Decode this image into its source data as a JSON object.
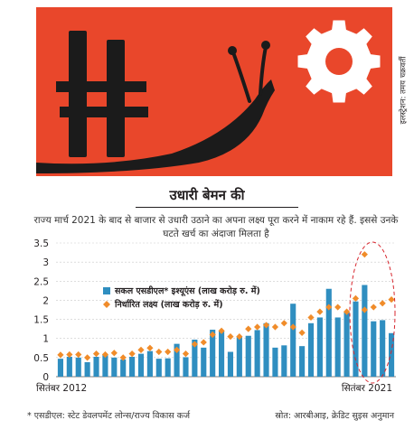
{
  "credit": "इलस्ट्रेशन: तमय चक्रवर्ती",
  "colors": {
    "background": "#e9472b",
    "bars": "#2f8ec0",
    "target_markers": "#f08c2a",
    "highlight_ellipse": "#d7262e",
    "icon_dark": "#1b1b1b",
    "icon_light": "#ffffff"
  },
  "icons": [
    "rupee-symbol-icon",
    "snail-icon",
    "gear-icon"
  ],
  "chart_data": {
    "type": "bar",
    "title": "उधारी बेमन की",
    "subtitle": "राज्य मार्च 2021 के बाद से बाजार से उधारी उठाने का अपना लक्ष्य पूरा करने में नाकाम रहे हैं. इससे उनके घटते खर्च का अंदाजा मिलता है",
    "ylim": [
      0,
      3.5
    ],
    "yticks": [
      "0",
      "0.5",
      "1",
      "1.5",
      "2",
      "2.5",
      "3",
      "3.5"
    ],
    "grid": true,
    "legend": "top-left",
    "xtick_labels": [
      "सितंबर 2012",
      "सितंबर 2021"
    ],
    "series": [
      {
        "name": "सकल एसडीएल* इश्यूएंस (लाख करोड़ रु. में)",
        "type": "bar",
        "values": [
          0.47,
          0.52,
          0.5,
          0.38,
          0.52,
          0.57,
          0.5,
          0.45,
          0.52,
          0.6,
          0.67,
          0.47,
          0.48,
          0.86,
          0.51,
          0.97,
          0.76,
          1.23,
          1.2,
          0.65,
          1.05,
          1.07,
          1.22,
          1.4,
          0.76,
          0.82,
          1.91,
          0.8,
          1.4,
          1.55,
          2.3,
          1.55,
          1.7,
          1.97,
          2.4,
          1.45,
          1.48,
          1.14
        ]
      },
      {
        "name": "निर्धारित लक्ष्य (लाख करोड़ रु. में)",
        "type": "marker",
        "values": [
          0.57,
          0.58,
          0.58,
          0.5,
          0.6,
          0.58,
          0.62,
          0.5,
          0.6,
          0.7,
          0.75,
          0.65,
          0.65,
          0.7,
          0.6,
          0.85,
          0.9,
          1.1,
          1.2,
          1.05,
          1.05,
          1.25,
          1.3,
          1.35,
          1.3,
          1.4,
          1.3,
          1.15,
          1.55,
          1.7,
          1.82,
          1.82,
          1.7,
          2.05,
          1.75,
          1.82,
          1.92,
          2.02
        ]
      }
    ],
    "outlier_marker": {
      "index": 34,
      "value": 3.2
    },
    "highlight": "last quarters ellipse",
    "footnote": "* एसडीएल: स्टेट डेवलपमेंट लोन्स/राज्य विकास कर्ज",
    "source": "स्रोत: आरबीआइ, क्रेडिट सुइस अनुमान"
  }
}
